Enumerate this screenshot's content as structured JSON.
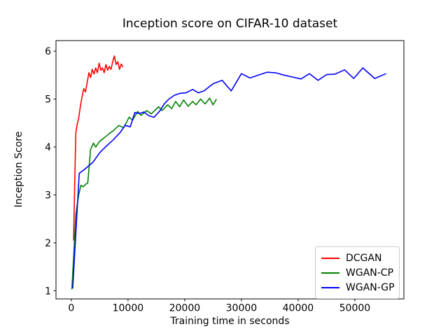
{
  "chart_data": {
    "type": "line",
    "title": "Inception score on CIFAR-10 dataset",
    "xlabel": "Training time in seconds",
    "ylabel": "Inception Score",
    "xlim": [
      -2700,
      58650
    ],
    "ylim": [
      0.83,
      6.22
    ],
    "grid": false,
    "legend_position": "lower right",
    "x_ticks": {
      "values": [
        0,
        10000,
        20000,
        30000,
        40000,
        50000
      ],
      "labels": [
        "0",
        "10000",
        "20000",
        "30000",
        "40000",
        "50000"
      ]
    },
    "y_ticks": {
      "values": [
        1,
        2,
        3,
        4,
        5,
        6
      ],
      "labels": [
        "1",
        "2",
        "3",
        "4",
        "5",
        "6"
      ]
    },
    "series": [
      {
        "name": "DCGAN",
        "color": "#ff0000",
        "x": [
          400,
          600,
          800,
          1000,
          1300,
          1600,
          1900,
          2200,
          2500,
          2800,
          3100,
          3400,
          3700,
          4000,
          4300,
          4600,
          4900,
          5200,
          5500,
          5800,
          6100,
          6400,
          6700,
          7000,
          7300,
          7600,
          7900,
          8200,
          8500,
          8800,
          9100
        ],
        "y": [
          2.05,
          3.25,
          4.3,
          4.45,
          4.6,
          4.85,
          5.05,
          5.22,
          5.15,
          5.35,
          5.55,
          5.45,
          5.62,
          5.52,
          5.65,
          5.55,
          5.75,
          5.6,
          5.65,
          5.55,
          5.72,
          5.6,
          5.68,
          5.62,
          5.78,
          5.9,
          5.72,
          5.78,
          5.62,
          5.73,
          5.67
        ]
      },
      {
        "name": "WGAN-CP",
        "color": "#008000",
        "x": [
          100,
          800,
          1300,
          1700,
          2100,
          2500,
          2900,
          3400,
          3900,
          4300,
          5000,
          5900,
          6700,
          7400,
          8400,
          9200,
          10200,
          10800,
          11700,
          12300,
          13300,
          14100,
          15400,
          16000,
          17000,
          17700,
          18400,
          19100,
          19800,
          20600,
          21400,
          22000,
          22800,
          23600,
          24400,
          25000,
          25600
        ],
        "y": [
          1.03,
          2.6,
          3.0,
          3.2,
          3.17,
          3.22,
          3.25,
          3.95,
          4.08,
          4.0,
          4.12,
          4.2,
          4.28,
          4.34,
          4.45,
          4.4,
          4.62,
          4.56,
          4.74,
          4.66,
          4.76,
          4.69,
          4.84,
          4.76,
          4.88,
          4.8,
          4.95,
          4.84,
          4.98,
          4.85,
          4.95,
          4.88,
          5.0,
          4.9,
          5.02,
          4.88,
          5.0
        ]
      },
      {
        "name": "WGAN-GP",
        "color": "#0000ff",
        "x": [
          250,
          1400,
          2200,
          3000,
          3800,
          5000,
          6200,
          7400,
          8600,
          9500,
          10400,
          11200,
          12000,
          12800,
          13700,
          14600,
          15600,
          16400,
          17200,
          18200,
          19200,
          20200,
          21400,
          22400,
          23400,
          25000,
          26600,
          28200,
          30000,
          31500,
          33000,
          34500,
          36000,
          37500,
          39000,
          40500,
          42000,
          43500,
          45000,
          46500,
          48200,
          49800,
          51400,
          53500,
          55500
        ],
        "y": [
          1.05,
          3.45,
          3.52,
          3.6,
          3.68,
          3.88,
          4.02,
          4.15,
          4.3,
          4.45,
          4.42,
          4.72,
          4.7,
          4.73,
          4.65,
          4.62,
          4.75,
          4.9,
          5.0,
          5.08,
          5.12,
          5.13,
          5.2,
          5.13,
          5.17,
          5.32,
          5.39,
          5.17,
          5.53,
          5.44,
          5.5,
          5.56,
          5.55,
          5.5,
          5.46,
          5.42,
          5.53,
          5.39,
          5.51,
          5.52,
          5.61,
          5.43,
          5.65,
          5.43,
          5.53
        ]
      }
    ]
  }
}
